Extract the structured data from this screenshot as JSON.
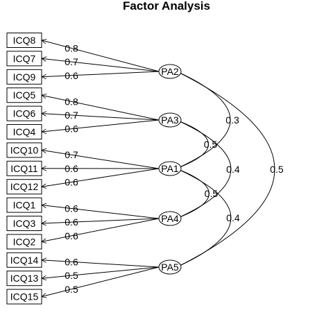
{
  "title": "Factor Analysis",
  "factors": [
    "PA2",
    "PA3",
    "PA1",
    "PA4",
    "PA5"
  ],
  "indicators": [
    "ICQ8",
    "ICQ7",
    "ICQ9",
    "ICQ5",
    "ICQ6",
    "ICQ4",
    "ICQ10",
    "ICQ11",
    "ICQ12",
    "ICQ1",
    "ICQ3",
    "ICQ2",
    "ICQ14",
    "ICQ13",
    "ICQ15"
  ],
  "loadings": [
    {
      "indicator": "ICQ8",
      "factor": "PA2",
      "value": "0.8"
    },
    {
      "indicator": "ICQ7",
      "factor": "PA2",
      "value": "0.7"
    },
    {
      "indicator": "ICQ9",
      "factor": "PA2",
      "value": "0.6"
    },
    {
      "indicator": "ICQ5",
      "factor": "PA3",
      "value": "0.8"
    },
    {
      "indicator": "ICQ6",
      "factor": "PA3",
      "value": "0.7"
    },
    {
      "indicator": "ICQ4",
      "factor": "PA3",
      "value": "0.6"
    },
    {
      "indicator": "ICQ10",
      "factor": "PA1",
      "value": "0.7"
    },
    {
      "indicator": "ICQ11",
      "factor": "PA1",
      "value": "0.6"
    },
    {
      "indicator": "ICQ12",
      "factor": "PA1",
      "value": "0.6"
    },
    {
      "indicator": "ICQ1",
      "factor": "PA4",
      "value": "0.6"
    },
    {
      "indicator": "ICQ3",
      "factor": "PA4",
      "value": "0.6"
    },
    {
      "indicator": "ICQ2",
      "factor": "PA4",
      "value": "0.6"
    },
    {
      "indicator": "ICQ14",
      "factor": "PA5",
      "value": "0.6"
    },
    {
      "indicator": "ICQ13",
      "factor": "PA5",
      "value": "0.5"
    },
    {
      "indicator": "ICQ15",
      "factor": "PA5",
      "value": "0.5"
    }
  ],
  "correlations": [
    {
      "from": "PA2",
      "to": "PA1",
      "value": "0.3"
    },
    {
      "from": "PA3",
      "to": "PA1",
      "value": "0.5"
    },
    {
      "from": "PA3",
      "to": "PA4",
      "value": "0.4"
    },
    {
      "from": "PA1",
      "to": "PA4",
      "value": "0.5"
    },
    {
      "from": "PA1",
      "to": "PA5",
      "value": "0.4"
    },
    {
      "from": "PA2",
      "to": "PA5",
      "value": "0.5"
    }
  ]
}
